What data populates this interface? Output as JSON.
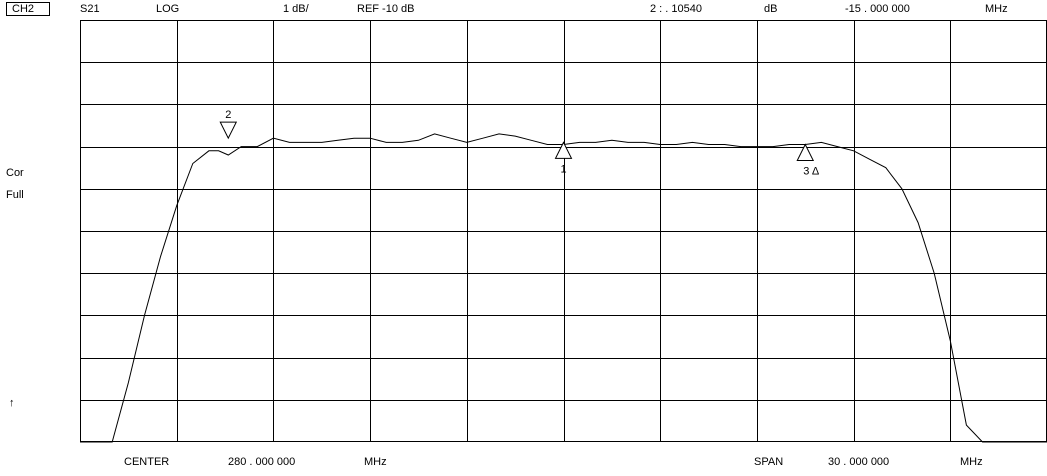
{
  "header": {
    "channel": "CH2",
    "parameter": "S21",
    "format": "LOG",
    "scale": "1 dB/",
    "reference": "REF -10 dB",
    "marker_readout": {
      "label": "2 : . 10540",
      "unit": "dB",
      "frequency": "-15 . 000 000",
      "frequency_unit": "MHz"
    }
  },
  "side_labels": {
    "correction": "Cor",
    "averaging": "Full",
    "ref_pointer": "↑"
  },
  "footer": {
    "center_label": "CENTER",
    "center_value": "280 . 000 000",
    "center_unit": "MHz",
    "span_label": "SPAN",
    "span_value": "30 . 000 000",
    "span_unit": "MHz"
  },
  "chart_data": {
    "type": "line",
    "title": "",
    "xlabel": "",
    "ylabel": "",
    "x_unit": "MHz",
    "y_unit": "dB",
    "xlim": [
      265,
      295
    ],
    "ylim": [
      -20,
      -10
    ],
    "grid": true,
    "divisions": {
      "x": 10,
      "y": 10
    },
    "series": [
      {
        "x": [
          265.0,
          266.0,
          266.5,
          267.0,
          267.5,
          268.0,
          268.5,
          269.0,
          269.3,
          269.6,
          270.0,
          270.5,
          271.0,
          271.5,
          272.0,
          272.5,
          273.0,
          273.5,
          274.0,
          274.5,
          275.0,
          275.5,
          276.0,
          276.5,
          277.0,
          277.5,
          278.0,
          278.5,
          279.0,
          279.5,
          280.0,
          280.5,
          281.0,
          281.5,
          282.0,
          282.5,
          283.0,
          283.5,
          284.0,
          284.5,
          285.0,
          285.5,
          286.0,
          286.5,
          287.0,
          287.5,
          288.0,
          288.5,
          289.0,
          289.5,
          290.0,
          290.5,
          291.0,
          291.5,
          292.0,
          292.5,
          293.0,
          293.4,
          293.7,
          294.0,
          295.0
        ],
        "y": [
          -20.0,
          -20.0,
          -18.6,
          -17.0,
          -15.6,
          -14.4,
          -13.4,
          -13.1,
          -13.1,
          -13.2,
          -13.0,
          -13.0,
          -12.8,
          -12.9,
          -12.9,
          -12.9,
          -12.85,
          -12.8,
          -12.8,
          -12.9,
          -12.9,
          -12.85,
          -12.7,
          -12.8,
          -12.9,
          -12.8,
          -12.7,
          -12.75,
          -12.85,
          -12.95,
          -12.95,
          -12.9,
          -12.9,
          -12.85,
          -12.9,
          -12.9,
          -12.95,
          -12.95,
          -12.9,
          -12.95,
          -12.95,
          -13.0,
          -13.0,
          -13.0,
          -12.95,
          -12.95,
          -12.9,
          -13.0,
          -13.1,
          -13.3,
          -13.5,
          -14.0,
          -14.8,
          -16.0,
          -17.6,
          -19.6,
          -20.0,
          -20.0,
          -20.0,
          -20.0,
          -20.0
        ]
      }
    ],
    "markers": [
      {
        "label": "1",
        "x": 280.0,
        "y": -12.9,
        "direction": "up"
      },
      {
        "label": "2",
        "x": 269.6,
        "y": -12.8,
        "direction": "down"
      },
      {
        "label": "3 Δ",
        "x": 287.5,
        "y": -12.95,
        "direction": "up"
      }
    ]
  }
}
